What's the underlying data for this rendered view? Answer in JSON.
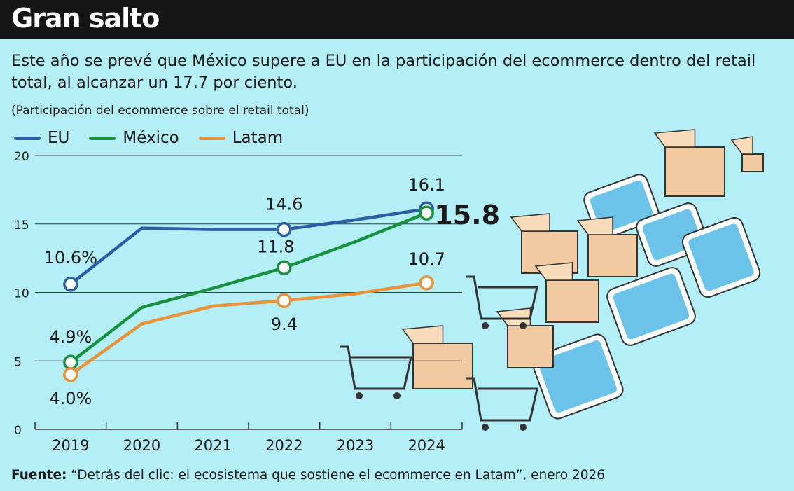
{
  "title": "Gran salto",
  "subtitle": "Este año se prevé que México supere a EU en la participación del ecommerce dentro del retail total, al alcanzar un 17.7 por ciento.",
  "source_label": "Fuente:",
  "source_text": "“Detrás del clic: el ecosistema que sostiene el ecommerce en Latam”, enero 2026",
  "chart_data": {
    "type": "line",
    "ylabel": "(Participación del ecommerce sobre el retail total)",
    "ylim": [
      0,
      20
    ],
    "yticks": [
      0,
      5,
      10,
      15,
      20
    ],
    "grid": true,
    "legend_position": "top-left",
    "categories": [
      "2019",
      "2020",
      "2021",
      "2022",
      "2023",
      "2024"
    ],
    "series": [
      {
        "name": "EU",
        "color": "#2f5ea8",
        "values": [
          10.6,
          14.7,
          14.6,
          14.6,
          15.3,
          16.1
        ],
        "labels": [
          {
            "i": 0,
            "text": "10.6%"
          },
          {
            "i": 3,
            "text": "14.6"
          },
          {
            "i": 5,
            "text": "16.1"
          }
        ]
      },
      {
        "name": "México",
        "color": "#17913e",
        "values": [
          4.9,
          8.9,
          10.3,
          11.8,
          13.7,
          15.8
        ],
        "labels": [
          {
            "i": 0,
            "text": "4.9%"
          },
          {
            "i": 3,
            "text": "11.8"
          },
          {
            "i": 5,
            "text": "15.8"
          }
        ]
      },
      {
        "name": "Latam",
        "color": "#e8923a",
        "values": [
          4.0,
          7.7,
          9.0,
          9.4,
          9.9,
          10.7
        ],
        "labels": [
          {
            "i": 0,
            "text": "4.0%"
          },
          {
            "i": 3,
            "text": "9.4"
          },
          {
            "i": 5,
            "text": "10.7"
          }
        ]
      }
    ],
    "marked_points": [
      0,
      3,
      5
    ]
  }
}
